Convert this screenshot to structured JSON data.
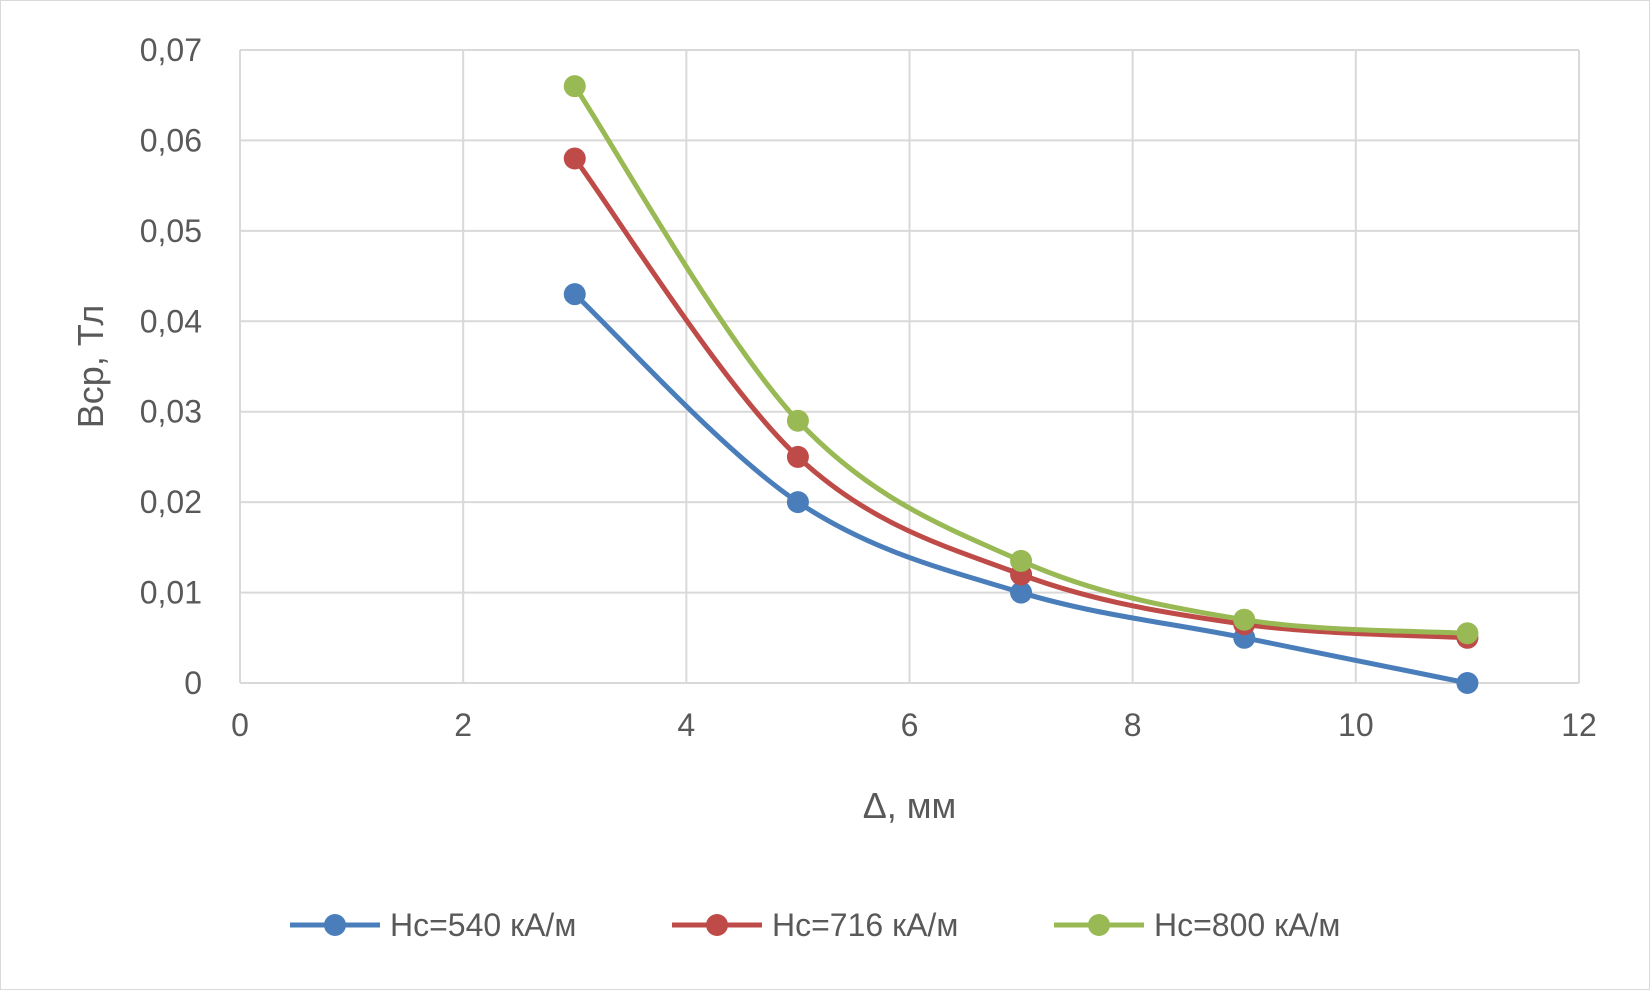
{
  "chart_data": {
    "type": "scatter",
    "xlabel": "Δ, мм",
    "ylabel": "Вср, Тл",
    "xlim": [
      0,
      12
    ],
    "ylim": [
      0,
      0.07
    ],
    "x_ticks": [
      0,
      2,
      4,
      6,
      8,
      10,
      12
    ],
    "y_ticks": [
      0,
      0.01,
      0.02,
      0.03,
      0.04,
      0.05,
      0.06,
      0.07
    ],
    "x_tick_labels": [
      "0",
      "2",
      "4",
      "6",
      "8",
      "10",
      "12"
    ],
    "y_tick_labels": [
      "0",
      "0,01",
      "0,02",
      "0,03",
      "0,04",
      "0,05",
      "0,06",
      "0,07"
    ],
    "grid": true,
    "smooth_lines": true,
    "legend_position": "bottom",
    "series": [
      {
        "name": "Hc=540 кА/м",
        "color": "#4a7ebb",
        "x": [
          3,
          5,
          7,
          9,
          11
        ],
        "y": [
          0.043,
          0.02,
          0.01,
          0.005,
          0.0
        ]
      },
      {
        "name": "Hc=716 кА/м",
        "color": "#be4b48",
        "x": [
          3,
          5,
          7,
          9,
          11
        ],
        "y": [
          0.058,
          0.025,
          0.012,
          0.0065,
          0.005
        ]
      },
      {
        "name": "Hc=800 кА/м",
        "color": "#98b954",
        "x": [
          3,
          5,
          7,
          9,
          11
        ],
        "y": [
          0.066,
          0.029,
          0.0135,
          0.007,
          0.0055
        ]
      }
    ]
  }
}
